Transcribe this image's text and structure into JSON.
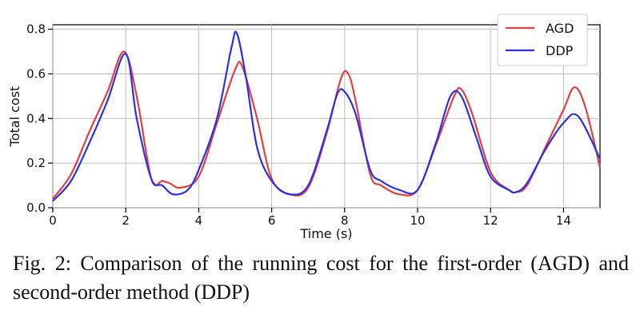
{
  "caption": "Fig. 2: Comparison of the running cost for the first-order (AGD) and second-order method (DDP)",
  "chart_data": {
    "type": "line",
    "title": "",
    "xlabel": "Time (s)",
    "ylabel": "Total cost",
    "xlim": [
      0,
      15
    ],
    "ylim": [
      0,
      0.82
    ],
    "xticks": [
      0,
      2,
      4,
      6,
      8,
      10,
      12,
      14
    ],
    "yticks": [
      0.0,
      0.2,
      0.4,
      0.6,
      0.8
    ],
    "xtick_labels": [
      "0",
      "2",
      "4",
      "6",
      "8",
      "10",
      "12",
      "14"
    ],
    "ytick_labels": [
      "0.0",
      "0.2",
      "0.4",
      "0.6",
      "0.8"
    ],
    "grid": true,
    "legend_position": "top-right",
    "series": [
      {
        "name": "AGD",
        "color": "#e04040",
        "x": [
          0,
          0.5,
          1.0,
          1.5,
          1.95,
          2.3,
          2.7,
          3.0,
          3.2,
          3.5,
          4.0,
          4.5,
          5.0,
          5.2,
          5.6,
          6.0,
          6.5,
          7.0,
          7.5,
          7.9,
          8.1,
          8.3,
          8.7,
          9.0,
          9.5,
          10.0,
          10.5,
          11.0,
          11.2,
          11.5,
          12.0,
          12.5,
          12.7,
          13.0,
          13.5,
          14.0,
          14.3,
          14.6,
          15.0
        ],
        "values": [
          0.04,
          0.15,
          0.34,
          0.52,
          0.7,
          0.5,
          0.13,
          0.12,
          0.11,
          0.09,
          0.14,
          0.38,
          0.62,
          0.63,
          0.4,
          0.13,
          0.06,
          0.09,
          0.33,
          0.58,
          0.6,
          0.48,
          0.15,
          0.1,
          0.06,
          0.08,
          0.28,
          0.5,
          0.53,
          0.42,
          0.16,
          0.08,
          0.07,
          0.1,
          0.27,
          0.44,
          0.54,
          0.45,
          0.18
        ]
      },
      {
        "name": "DDP",
        "color": "#3030e0",
        "x": [
          0,
          0.5,
          1.0,
          1.5,
          2.0,
          2.3,
          2.7,
          3.0,
          3.3,
          3.7,
          4.0,
          4.5,
          4.9,
          5.05,
          5.3,
          5.6,
          6.0,
          6.5,
          7.0,
          7.5,
          7.8,
          8.0,
          8.3,
          8.7,
          9.0,
          9.5,
          10.0,
          10.5,
          10.9,
          11.2,
          11.6,
          12.0,
          12.5,
          12.7,
          13.0,
          13.5,
          14.0,
          14.4,
          15.0
        ],
        "values": [
          0.03,
          0.12,
          0.29,
          0.48,
          0.69,
          0.4,
          0.13,
          0.1,
          0.06,
          0.08,
          0.17,
          0.4,
          0.72,
          0.78,
          0.58,
          0.27,
          0.12,
          0.06,
          0.1,
          0.34,
          0.51,
          0.52,
          0.42,
          0.17,
          0.12,
          0.08,
          0.08,
          0.29,
          0.5,
          0.5,
          0.32,
          0.14,
          0.08,
          0.07,
          0.11,
          0.26,
          0.38,
          0.41,
          0.22
        ]
      }
    ]
  }
}
